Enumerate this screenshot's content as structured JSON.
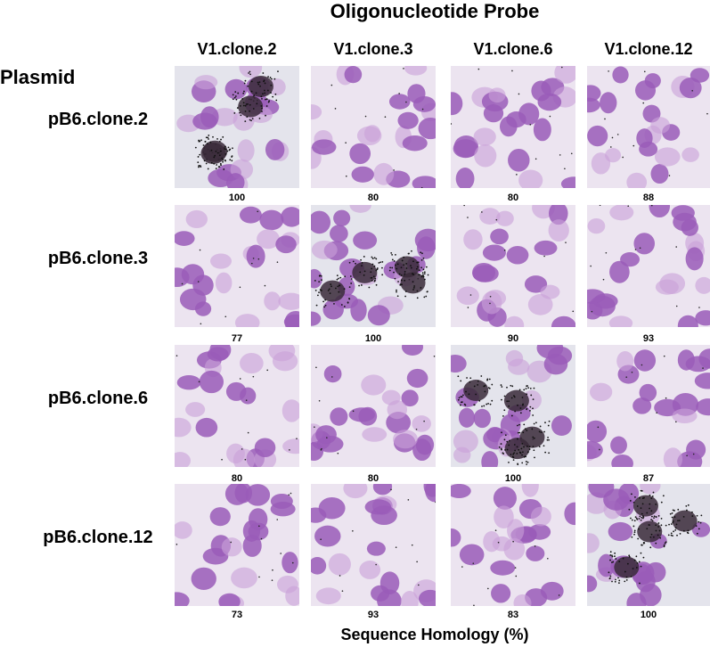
{
  "title": "Oligonucleotide Probe",
  "plasmid_label": "Plasmid",
  "columns": [
    "V1.clone.2",
    "V1.clone.3",
    "V1.clone.6",
    "V1.clone.12"
  ],
  "rows": [
    {
      "label": "pB6.clone.2",
      "values": [
        100,
        80,
        80,
        88
      ]
    },
    {
      "label": "pB6.clone.3",
      "values": [
        77,
        100,
        90,
        93
      ]
    },
    {
      "label": "pB6.clone.6",
      "values": [
        80,
        80,
        100,
        87
      ]
    },
    {
      "label": "pB6.clone.12",
      "values": [
        73,
        93,
        83,
        100
      ]
    }
  ],
  "x_label": "Sequence Homology (%)"
}
